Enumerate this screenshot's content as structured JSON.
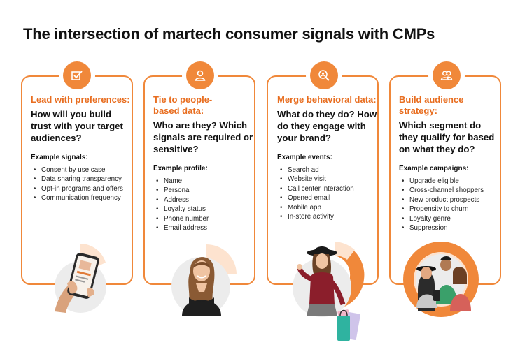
{
  "title": "The intersection of martech consumer signals with CMPs",
  "colors": {
    "accent": "#f0883a",
    "heading": "#e86d1f",
    "light_orange": "#fde3cf"
  },
  "cards": [
    {
      "icon": "checkbox-pencil-icon",
      "heading": "Lead with preferences:",
      "question": "How will you build trust with your target audiences?",
      "list_label": "Example signals:",
      "items": [
        "Consent by use case",
        "Data sharing transparency",
        "Opt-in programs and offers",
        "Communication frequency"
      ],
      "image": "hand-holding-phone"
    },
    {
      "icon": "person-icon",
      "heading": "Tie to people-based data:",
      "question": "Who are they? Which signals are required or sensitive?",
      "list_label": "Example profile:",
      "items": [
        "Name",
        "Persona",
        "Address",
        "Loyalty status",
        "Phone number",
        "Email address"
      ],
      "image": "smiling-woman"
    },
    {
      "icon": "magnify-person-icon",
      "heading": "Merge behavioral data:",
      "question": "What do they do? How do they engage with your brand?",
      "list_label": "Example events:",
      "items": [
        "Search ad",
        "Website visit",
        "Call center interaction",
        "Opened email",
        "Mobile app",
        "In-store activity"
      ],
      "image": "shopper-with-bags"
    },
    {
      "icon": "group-icon",
      "heading": "Build audience strategy:",
      "question": "Which segment do they qualify for based on what they do?",
      "list_label": "Example campaigns:",
      "items": [
        "Upgrade eligible",
        "Cross-channel shoppers",
        "New product prospects",
        "Propensity to churn",
        "Loyalty genre",
        "Suppression"
      ],
      "image": "group-of-friends"
    }
  ]
}
